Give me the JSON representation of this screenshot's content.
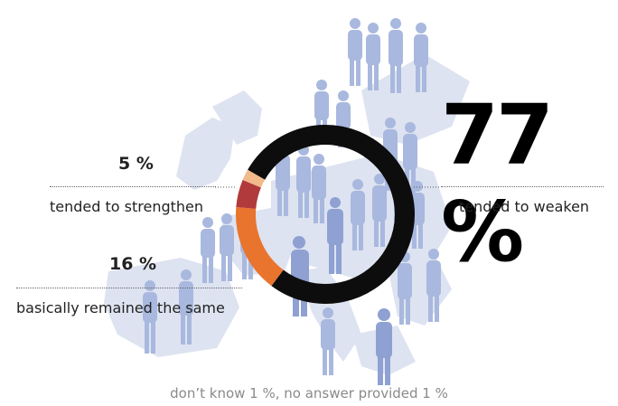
{
  "chart_data": {
    "type": "donut",
    "slices": [
      {
        "label": "tended to weaken",
        "value": 77,
        "display": "77 %",
        "color": "#0d0d0d"
      },
      {
        "label": "basically remained the same",
        "value": 16,
        "display": "16 %",
        "color": "#e9742e"
      },
      {
        "label": "tended to strengthen",
        "value": 5,
        "display": "5 %",
        "color": "#b03a3c"
      },
      {
        "label": "don’t know",
        "value": 1,
        "color": "#f2b98a"
      },
      {
        "label": "no answer provided",
        "value": 1,
        "color": "#f2b98a"
      }
    ],
    "footnote": "don’t know 1 %, no answer provided 1 %"
  },
  "colors": {
    "map": "#dde3f0",
    "people": "#a9b8de",
    "people_dark": "#8ea1d2"
  }
}
